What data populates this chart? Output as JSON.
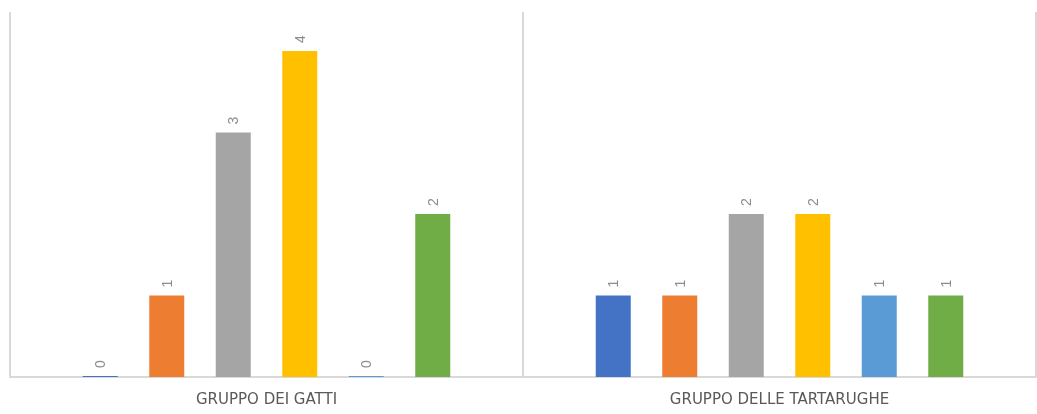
{
  "chart_data": {
    "type": "bar",
    "categories": [
      "GRUPPO DEI GATTI",
      "GRUPPO DELLE TARTARUGHE"
    ],
    "series": [
      {
        "color": "#4472c4",
        "values": [
          0,
          1
        ]
      },
      {
        "color": "#ed7d31",
        "values": [
          1,
          1
        ]
      },
      {
        "color": "#a5a5a5",
        "values": [
          3,
          2
        ]
      },
      {
        "color": "#ffc000",
        "values": [
          4,
          2
        ]
      },
      {
        "color": "#5b9bd5",
        "values": [
          0,
          1
        ]
      },
      {
        "color": "#70ad47",
        "values": [
          2,
          1
        ]
      }
    ],
    "data_labels": true,
    "grid": false
  }
}
